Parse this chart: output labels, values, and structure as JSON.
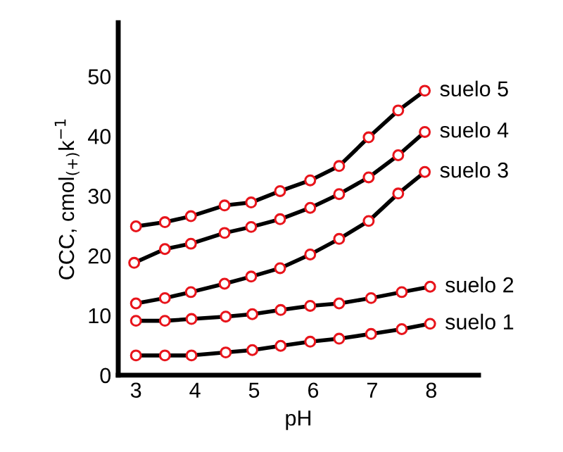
{
  "chart_data": {
    "type": "line",
    "xlabel": "pH",
    "ylabel": "CCC, cmol$_{(+)}$k$^{−1}$",
    "xlim": [
      2.7,
      8.8
    ],
    "ylim": [
      0,
      59
    ],
    "xticks": [
      3,
      4,
      5,
      6,
      7,
      8
    ],
    "yticks": [
      0,
      10,
      20,
      30,
      40,
      50
    ],
    "grid": false,
    "legend": false,
    "marker": "circle",
    "line_style": "solid",
    "series": [
      {
        "name": "suelo 5",
        "color": "#000000",
        "x": [
          3,
          3.49,
          3.93,
          4.5,
          4.95,
          5.44,
          5.95,
          6.44,
          6.94,
          7.44,
          7.89
        ],
        "values": [
          24.9,
          25.6,
          26.6,
          28.4,
          28.9,
          30.8,
          32.6,
          35,
          39.8,
          44.3,
          47.6
        ]
      },
      {
        "name": "suelo 4",
        "color": "#000000",
        "x": [
          2.97,
          3.49,
          3.93,
          4.5,
          4.95,
          5.44,
          5.95,
          6.44,
          6.94,
          7.44,
          7.89
        ],
        "values": [
          18.8,
          21.1,
          22,
          23.8,
          24.8,
          26.1,
          28,
          30.3,
          33.1,
          36.8,
          40.7
        ]
      },
      {
        "name": "suelo 3",
        "color": "#000000",
        "x": [
          3,
          3.49,
          3.93,
          4.5,
          4.95,
          5.44,
          5.95,
          6.44,
          6.94,
          7.44,
          7.89
        ],
        "values": [
          12,
          12.9,
          13.9,
          15.3,
          16.5,
          17.9,
          20.2,
          22.8,
          25.8,
          30.4,
          34
        ]
      },
      {
        "name": "suelo 2",
        "color": "#000000",
        "x": [
          3,
          3.49,
          3.94,
          4.52,
          4.97,
          5.45,
          5.95,
          6.44,
          6.98,
          7.5,
          7.98
        ],
        "values": [
          9.1,
          9.1,
          9.4,
          9.8,
          10.2,
          10.9,
          11.6,
          12,
          12.9,
          13.9,
          14.8
        ]
      },
      {
        "name": "suelo 1",
        "color": "#000000",
        "x": [
          3,
          3.49,
          3.94,
          4.52,
          4.97,
          5.45,
          5.95,
          6.44,
          6.98,
          7.5,
          7.98
        ],
        "values": [
          3.3,
          3.3,
          3.3,
          3.8,
          4.2,
          4.9,
          5.6,
          6.1,
          6.9,
          7.7,
          8.6
        ]
      }
    ]
  }
}
